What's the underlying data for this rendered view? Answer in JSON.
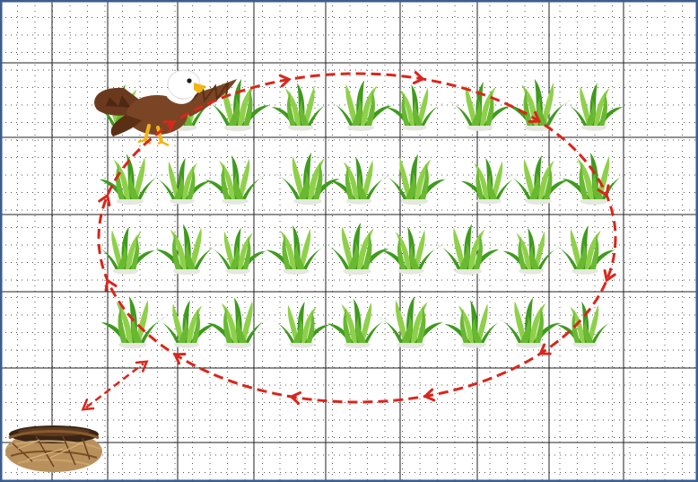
{
  "scene": {
    "background_color": "#ffffff",
    "border_color": "#3b5d8f",
    "grid_major_color": "#222222",
    "grid_minor_color": "#555555",
    "path_color": "#d9261c"
  },
  "field": {
    "rows": 4,
    "plants_per_row": [
      10,
      10,
      10,
      9
    ],
    "grass_light": "#8fd04a",
    "grass_dark": "#3f9a1e"
  },
  "characters": {
    "eagle": {
      "icon": "eagle-icon",
      "body_color": "#7a4524",
      "head_color": "#ffffff",
      "beak_color": "#f2b515"
    },
    "nest": {
      "icon": "nest-icon",
      "color": "#8a5a2b"
    }
  },
  "path": {
    "style": "dashed",
    "direction": "clockwise",
    "loop_arrows": 12,
    "connector": "double-headed",
    "connects": [
      "nest",
      "field-loop"
    ]
  }
}
